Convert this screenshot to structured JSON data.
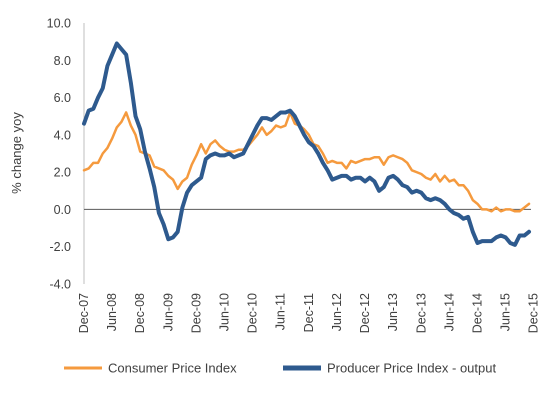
{
  "chart_data": {
    "type": "line",
    "ylabel": "% change yoy",
    "ylim": [
      -4.0,
      10.0
    ],
    "yticks": [
      "10.0",
      "8.0",
      "6.0",
      "4.0",
      "2.0",
      "0.0",
      "-2.0",
      "-4.0"
    ],
    "yticks_values": [
      10,
      8,
      6,
      4,
      2,
      0,
      -2,
      -4
    ],
    "xticks": [
      "Dec-07",
      "Jun-08",
      "Dec-08",
      "Jun-09",
      "Dec-09",
      "Jun-10",
      "Dec-10",
      "Jun-11",
      "Dec-11",
      "Jun-12",
      "Dec-12",
      "Jun-13",
      "Dec-13",
      "Jun-14",
      "Dec-14",
      "Jun-15",
      "Dec-15"
    ],
    "legend_position": "bottom",
    "grid": false,
    "start_month": "Dec-07",
    "series": [
      {
        "name": "Consumer Price Index",
        "color": "#F59A3E",
        "values": [
          2.1,
          2.2,
          2.5,
          2.5,
          3.0,
          3.3,
          3.8,
          4.4,
          4.7,
          5.2,
          4.5,
          4.0,
          3.1,
          3.0,
          2.9,
          2.3,
          2.2,
          2.1,
          1.8,
          1.6,
          1.1,
          1.5,
          1.7,
          2.4,
          2.9,
          3.5,
          3.0,
          3.5,
          3.7,
          3.4,
          3.2,
          3.1,
          3.1,
          3.2,
          3.2,
          3.4,
          3.7,
          4.0,
          4.4,
          4.0,
          4.2,
          4.5,
          4.4,
          4.5,
          5.2,
          4.6,
          4.5,
          4.3,
          4.0,
          3.5,
          3.4,
          3.0,
          2.5,
          2.6,
          2.5,
          2.5,
          2.2,
          2.6,
          2.5,
          2.6,
          2.7,
          2.7,
          2.8,
          2.8,
          2.4,
          2.8,
          2.9,
          2.8,
          2.7,
          2.5,
          2.1,
          2.0,
          1.9,
          1.7,
          1.6,
          1.9,
          1.5,
          1.8,
          1.5,
          1.6,
          1.3,
          1.3,
          1.0,
          0.5,
          0.3,
          0.0,
          0.0,
          -0.1,
          0.1,
          -0.1,
          0.0,
          0.0,
          -0.1,
          -0.1,
          0.1,
          0.3
        ]
      },
      {
        "name": "Producer Price Index - output",
        "color": "#2E5A8E",
        "values": [
          4.6,
          5.3,
          5.4,
          6.0,
          6.5,
          7.7,
          8.3,
          8.9,
          8.6,
          8.3,
          6.8,
          5.0,
          4.3,
          3.1,
          2.2,
          1.2,
          -0.2,
          -0.8,
          -1.6,
          -1.5,
          -1.2,
          0.1,
          0.9,
          1.3,
          1.5,
          1.7,
          2.7,
          2.9,
          3.0,
          2.9,
          2.9,
          3.0,
          2.8,
          2.9,
          3.0,
          3.5,
          4.0,
          4.5,
          4.9,
          4.9,
          4.8,
          5.0,
          5.2,
          5.2,
          5.3,
          5.0,
          4.5,
          4.0,
          3.6,
          3.4,
          3.0,
          2.5,
          2.1,
          1.6,
          1.7,
          1.8,
          1.8,
          1.6,
          1.7,
          1.7,
          1.5,
          1.7,
          1.5,
          1.0,
          1.2,
          1.7,
          1.8,
          1.6,
          1.3,
          1.2,
          0.9,
          1.0,
          0.9,
          0.6,
          0.5,
          0.6,
          0.5,
          0.3,
          0.0,
          -0.2,
          -0.3,
          -0.5,
          -0.4,
          -1.2,
          -1.8,
          -1.7,
          -1.7,
          -1.7,
          -1.5,
          -1.4,
          -1.5,
          -1.8,
          -1.9,
          -1.4,
          -1.4,
          -1.2
        ]
      }
    ]
  }
}
